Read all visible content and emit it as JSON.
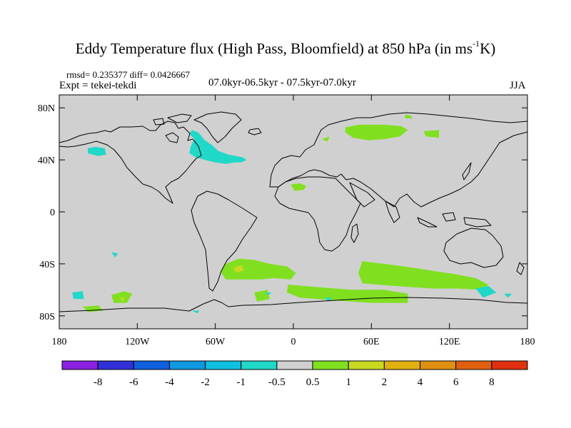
{
  "title": {
    "main": "Eddy Temperature flux (High Pass, Bloomfield) at 850 hPa (in ms",
    "sup": "-1",
    "end": "K)"
  },
  "stats_line": "rmsd= 0.235377 diff= 0.0426667",
  "experiment_line": "Expt = tekei-tekdi",
  "period_line": "07.0kyr-06.5kyr - 07.5kyr-07.0kyr",
  "season": "JJA",
  "map": {
    "background_color": "#d0d0d0",
    "lat_range": [
      -90,
      90
    ],
    "lon_range": [
      -180,
      180
    ],
    "y_ticks": [
      {
        "lat": 80,
        "label": "80N"
      },
      {
        "lat": 40,
        "label": "40N"
      },
      {
        "lat": 0,
        "label": "0"
      },
      {
        "lat": -40,
        "label": "40S"
      },
      {
        "lat": -80,
        "label": "80S"
      }
    ],
    "x_ticks": [
      {
        "lon": -180,
        "label": "180"
      },
      {
        "lon": -120,
        "label": "120W"
      },
      {
        "lon": -60,
        "label": "60W"
      },
      {
        "lon": 0,
        "label": "0"
      },
      {
        "lon": 60,
        "label": "60E"
      },
      {
        "lon": 120,
        "label": "120E"
      },
      {
        "lon": 180,
        "label": "180"
      }
    ],
    "anomaly_regions": [
      {
        "name": "north-atlantic-negative",
        "level": "-1 to -0.5",
        "color": "#20d8c8",
        "polygon": [
          [
            -80,
            45
          ],
          [
            -75,
            42
          ],
          [
            -68,
            40
          ],
          [
            -60,
            38
          ],
          [
            -52,
            37
          ],
          [
            -45,
            38
          ],
          [
            -40,
            38
          ],
          [
            -36,
            40
          ],
          [
            -39,
            42
          ],
          [
            -50,
            44
          ],
          [
            -58,
            47
          ],
          [
            -62,
            51
          ],
          [
            -68,
            55
          ],
          [
            -73,
            61
          ],
          [
            -78,
            63
          ],
          [
            -80,
            60
          ],
          [
            -76,
            56
          ],
          [
            -79,
            50
          ]
        ]
      },
      {
        "name": "north-pacific-negative",
        "level": "-1 to -0.5",
        "color": "#20d8c8",
        "polygon": [
          [
            -158,
            45
          ],
          [
            -150,
            43
          ],
          [
            -144,
            44
          ],
          [
            -145,
            49
          ],
          [
            -152,
            50
          ],
          [
            -158,
            49
          ]
        ]
      },
      {
        "name": "siberia-positive",
        "level": "0.5 to 1",
        "color": "#80e020",
        "polygon": [
          [
            40,
            65
          ],
          [
            50,
            67
          ],
          [
            70,
            67
          ],
          [
            83,
            66
          ],
          [
            88,
            63
          ],
          [
            82,
            58
          ],
          [
            70,
            56
          ],
          [
            58,
            55
          ],
          [
            46,
            57
          ],
          [
            40,
            61
          ]
        ]
      },
      {
        "name": "barents-positive",
        "level": "0.5 to 1",
        "color": "#80e020",
        "polygon": [
          [
            86,
            75
          ],
          [
            90,
            74
          ],
          [
            92,
            72
          ],
          [
            86,
            72
          ]
        ]
      },
      {
        "name": "east-siberia-positive",
        "level": "0.5 to 1",
        "color": "#80e020",
        "polygon": [
          [
            100,
            62
          ],
          [
            112,
            63
          ],
          [
            112,
            57
          ],
          [
            102,
            58
          ]
        ]
      },
      {
        "name": "scandinavia-positive",
        "level": "0.5 to 1",
        "color": "#80e020",
        "polygon": [
          [
            22,
            56
          ],
          [
            28,
            58
          ],
          [
            26,
            54
          ]
        ]
      },
      {
        "name": "west-africa-positive",
        "level": "0.5 to 1",
        "color": "#80e020",
        "polygon": [
          [
            -2,
            21
          ],
          [
            5,
            22
          ],
          [
            10,
            20
          ],
          [
            8,
            17
          ],
          [
            1,
            16
          ]
        ]
      },
      {
        "name": "south-atlantic-positive",
        "level": "0.5 to 1",
        "color": "#80e020",
        "polygon": [
          [
            -52,
            -40
          ],
          [
            -42,
            -36
          ],
          [
            -30,
            -37
          ],
          [
            -18,
            -40
          ],
          [
            -5,
            -42
          ],
          [
            2,
            -47
          ],
          [
            -2,
            -52
          ],
          [
            -15,
            -51
          ],
          [
            -25,
            -52
          ],
          [
            -38,
            -52
          ],
          [
            -52,
            -52
          ],
          [
            -56,
            -46
          ]
        ]
      },
      {
        "name": "south-atlantic-core",
        "level": "1 to 2",
        "color": "#c8d820",
        "polygon": [
          [
            -46,
            -43
          ],
          [
            -40,
            -41
          ],
          [
            -38,
            -45
          ],
          [
            -44,
            -47
          ]
        ]
      },
      {
        "name": "indian-ocean-positive",
        "level": "0.5 to 1",
        "color": "#80e020",
        "polygon": [
          [
            53,
            -38
          ],
          [
            70,
            -40
          ],
          [
            85,
            -42
          ],
          [
            105,
            -45
          ],
          [
            125,
            -48
          ],
          [
            140,
            -51
          ],
          [
            150,
            -56
          ],
          [
            145,
            -60
          ],
          [
            125,
            -59
          ],
          [
            108,
            -59
          ],
          [
            92,
            -58
          ],
          [
            78,
            -57
          ],
          [
            65,
            -56
          ],
          [
            53,
            -55
          ],
          [
            50,
            -47
          ]
        ]
      },
      {
        "name": "southern-ocean-band-positive",
        "level": "0.5 to 1",
        "color": "#80e020",
        "polygon": [
          [
            -4,
            -56
          ],
          [
            20,
            -58
          ],
          [
            45,
            -60
          ],
          [
            70,
            -60
          ],
          [
            88,
            -63
          ],
          [
            88,
            -70
          ],
          [
            60,
            -70
          ],
          [
            30,
            -68
          ],
          [
            5,
            -66
          ],
          [
            -5,
            -62
          ]
        ]
      },
      {
        "name": "weddell-positive",
        "level": "0.5 to 1",
        "color": "#80e020",
        "polygon": [
          [
            -30,
            -62
          ],
          [
            -20,
            -60
          ],
          [
            -18,
            -67
          ],
          [
            -28,
            -69
          ]
        ]
      },
      {
        "name": "south-pacific-positive",
        "level": "0.5 to 1",
        "color": "#80e020",
        "polygon": [
          [
            -140,
            -64
          ],
          [
            -130,
            -61
          ],
          [
            -124,
            -63
          ],
          [
            -128,
            -70
          ],
          [
            -138,
            -70
          ]
        ]
      },
      {
        "name": "south-pacific-core",
        "level": "1 to 2",
        "color": "#c8d820",
        "polygon": [
          [
            -134,
            -66
          ],
          [
            -130,
            -66
          ],
          [
            -131,
            -69
          ]
        ]
      },
      {
        "name": "ross-sea-positive",
        "level": "0.5 to 1",
        "color": "#80e020",
        "polygon": [
          [
            -162,
            -73
          ],
          [
            -150,
            -72
          ],
          [
            -146,
            -76
          ],
          [
            -158,
            -77
          ]
        ]
      },
      {
        "name": "sw-pacific-negative",
        "level": "-1 to -0.5",
        "color": "#20d8c8",
        "polygon": [
          [
            -170,
            -62
          ],
          [
            -162,
            -61
          ],
          [
            -161,
            -67
          ],
          [
            -169,
            -67
          ]
        ]
      },
      {
        "name": "se-pacific-negative",
        "level": "-1 to -0.5",
        "color": "#20d8c8",
        "polygon": [
          [
            -140,
            -31
          ],
          [
            -135,
            -32
          ],
          [
            -137,
            -35
          ]
        ]
      },
      {
        "name": "tasman-negative",
        "level": "-1 to -0.5",
        "color": "#20d8c8",
        "polygon": [
          [
            140,
            -59
          ],
          [
            150,
            -57
          ],
          [
            156,
            -62
          ],
          [
            146,
            -66
          ]
        ]
      },
      {
        "name": "south-of-nz-negative",
        "level": "-1 to -0.5",
        "color": "#20d8c8",
        "polygon": [
          [
            162,
            -63
          ],
          [
            168,
            -63
          ],
          [
            165,
            -66
          ]
        ]
      },
      {
        "name": "amundsen-negative",
        "level": "-1 to -0.5",
        "color": "#20d8c8",
        "polygon": [
          [
            -78,
            -76
          ],
          [
            -72,
            -76
          ],
          [
            -74,
            -78
          ]
        ]
      },
      {
        "name": "drake-negative",
        "level": "-1 to -0.5",
        "color": "#20d8c8",
        "polygon": [
          [
            -22,
            -62
          ],
          [
            -17,
            -62
          ],
          [
            -19,
            -64
          ]
        ]
      },
      {
        "name": "kerguelen-negative",
        "level": "-1 to -0.5",
        "color": "#20d8c8",
        "polygon": [
          [
            24,
            -66
          ],
          [
            30,
            -66
          ],
          [
            27,
            -69
          ]
        ]
      }
    ]
  },
  "colorbar": {
    "colors": [
      "#8a20e0",
      "#3030d8",
      "#1060e0",
      "#1098e0",
      "#10c0e0",
      "#20d8c8",
      "#d0d0d0",
      "#80e020",
      "#c8d820",
      "#e0b010",
      "#e09010",
      "#e06010",
      "#e03010"
    ],
    "labels": [
      "-8",
      "-6",
      "-4",
      "-2",
      "-1",
      "-0.5",
      "0.5",
      "1",
      "2",
      "4",
      "6",
      "8"
    ]
  }
}
